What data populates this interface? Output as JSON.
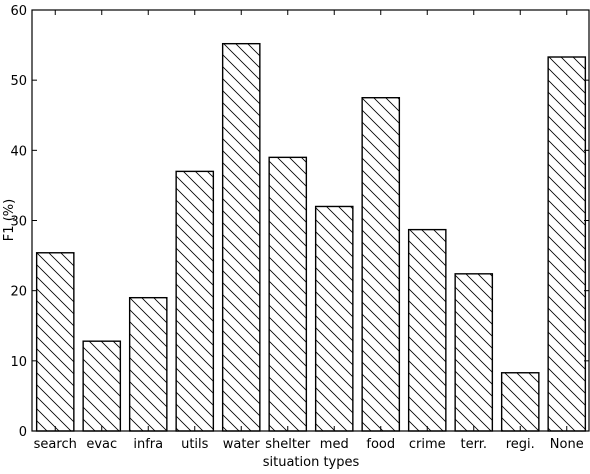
{
  "chart_data": {
    "type": "bar",
    "categories": [
      "search",
      "evac",
      "infra",
      "utils",
      "water",
      "shelter",
      "med",
      "food",
      "crime",
      "terr.",
      "regi.",
      "None"
    ],
    "values": [
      25.4,
      12.8,
      19.0,
      37.0,
      55.2,
      39.0,
      32.0,
      47.5,
      28.7,
      22.4,
      8.3,
      53.3
    ],
    "title": "",
    "xlabel": "situation types",
    "ylabel": "F1 (%)",
    "ylim": [
      0,
      60
    ],
    "yticks": [
      "0",
      "10",
      "20",
      "30",
      "40",
      "50",
      "60"
    ],
    "bar_fill": "#ffffff",
    "bar_hatch": "diagonal (\\\\)",
    "grid": false,
    "legend": "none"
  }
}
